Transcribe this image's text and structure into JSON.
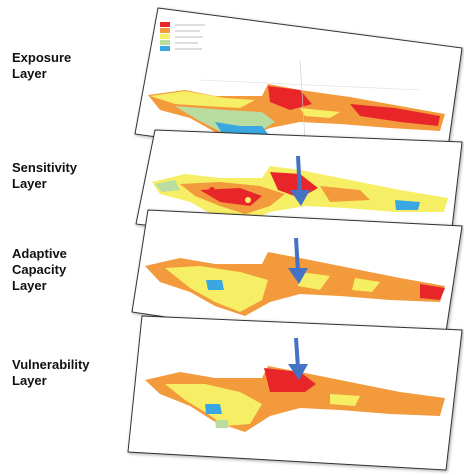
{
  "layers": [
    {
      "label": "Exposure\nLayer",
      "scheme": "exposure"
    },
    {
      "label": "Sensitivity\nLayer",
      "scheme": "sensitivity"
    },
    {
      "label": "Adaptive\nCapacity\nLayer",
      "scheme": "adaptive"
    },
    {
      "label": "Vulnerability\nLayer",
      "scheme": "vulnerability"
    }
  ],
  "palette": {
    "red": "#e8262a",
    "orange": "#f39a3c",
    "yellow": "#f6ee64",
    "light_green": "#b9dca0",
    "blue": "#3aa7e3",
    "arrow": "#4472c4",
    "frame": "#333333"
  },
  "legend_colors": [
    "#e8262a",
    "#f39a3c",
    "#f6ee64",
    "#b9dca0",
    "#3aa7e3"
  ]
}
